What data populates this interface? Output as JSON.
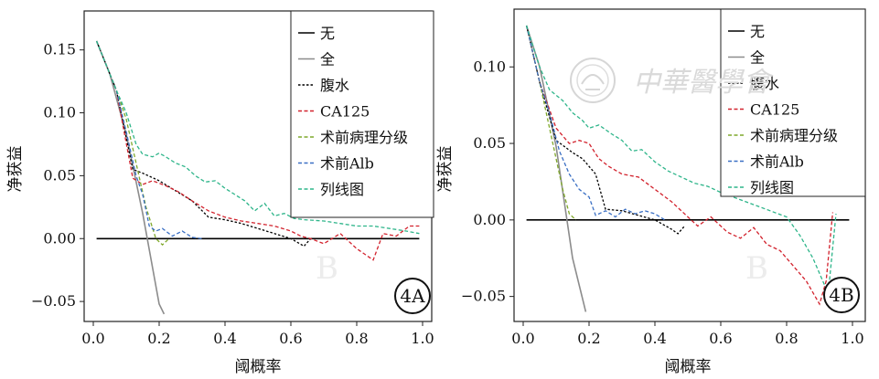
{
  "chart_data": [
    {
      "type": "line",
      "panel_label": "4A",
      "xlabel": "阈概率",
      "ylabel": "净获益",
      "xlim": [
        0.0,
        1.0
      ],
      "ylim": [
        -0.055,
        0.165
      ],
      "xticks": [
        0.0,
        0.2,
        0.4,
        0.6,
        0.8,
        1.0
      ],
      "xtick_labels": [
        "0.0",
        "0.2",
        "0.4",
        "0.6",
        "0.8",
        "1.0"
      ],
      "yticks": [
        0.15,
        0.1,
        0.05,
        0.0,
        -0.05
      ],
      "ytick_labels": [
        "0.15",
        "0.10",
        "0.05",
        "0.00",
        "−0.05"
      ],
      "legend_position": "top-right",
      "series": [
        {
          "name": "无",
          "color": "#000000",
          "dash": "solid",
          "x": [
            0.01,
            0.99
          ],
          "y": [
            0.0,
            0.0
          ]
        },
        {
          "name": "全",
          "color": "#8c8c8c",
          "dash": "solid",
          "x": [
            0.01,
            0.05,
            0.1,
            0.15,
            0.2,
            0.215
          ],
          "y": [
            0.157,
            0.131,
            0.083,
            0.02,
            -0.052,
            -0.06
          ]
        },
        {
          "name": "腹水",
          "color": "#000000",
          "dash": "dot",
          "x": [
            0.01,
            0.07,
            0.12,
            0.15,
            0.2,
            0.25,
            0.3,
            0.35,
            0.4,
            0.45,
            0.5,
            0.55,
            0.6,
            0.64,
            0.66
          ],
          "y": [
            0.157,
            0.118,
            0.055,
            0.052,
            0.046,
            0.038,
            0.03,
            0.017,
            0.015,
            0.012,
            0.008,
            0.004,
            0.0,
            -0.006,
            0.0
          ]
        },
        {
          "name": "CA125",
          "color": "#d2222d",
          "dash": "dash",
          "x": [
            0.01,
            0.07,
            0.12,
            0.15,
            0.18,
            0.22,
            0.26,
            0.3,
            0.35,
            0.4,
            0.45,
            0.5,
            0.55,
            0.6,
            0.63,
            0.66,
            0.7,
            0.75,
            0.8,
            0.85,
            0.88,
            0.92,
            0.96,
            0.99
          ],
          "y": [
            0.157,
            0.118,
            0.048,
            0.043,
            0.046,
            0.042,
            0.037,
            0.03,
            0.022,
            0.017,
            0.014,
            0.012,
            0.01,
            0.006,
            0.002,
            0.0,
            -0.004,
            0.004,
            -0.008,
            -0.017,
            0.004,
            0.002,
            0.01,
            0.01
          ]
        },
        {
          "name": "术前病理分级",
          "color": "#7fa82b",
          "dash": "dash",
          "x": [
            0.01,
            0.07,
            0.1,
            0.13,
            0.16,
            0.19,
            0.21,
            0.23
          ],
          "y": [
            0.157,
            0.118,
            0.095,
            0.06,
            0.025,
            0.0,
            -0.005,
            0.0
          ]
        },
        {
          "name": "术前Alb",
          "color": "#3a6fc4",
          "dash": "dash",
          "x": [
            0.01,
            0.07,
            0.1,
            0.13,
            0.15,
            0.17,
            0.19,
            0.21,
            0.24,
            0.27,
            0.3,
            0.33
          ],
          "y": [
            0.157,
            0.118,
            0.085,
            0.05,
            0.035,
            0.01,
            0.006,
            0.008,
            0.002,
            0.006,
            0.001,
            0.0
          ]
        },
        {
          "name": "列线图",
          "color": "#2eb58a",
          "dash": "dash",
          "x": [
            0.01,
            0.07,
            0.1,
            0.13,
            0.15,
            0.18,
            0.2,
            0.22,
            0.25,
            0.28,
            0.31,
            0.34,
            0.37,
            0.4,
            0.43,
            0.46,
            0.49,
            0.52,
            0.55,
            0.58,
            0.61,
            0.64,
            0.7,
            0.75,
            0.8,
            0.85,
            0.9,
            0.95,
            0.99
          ],
          "y": [
            0.157,
            0.118,
            0.1,
            0.075,
            0.067,
            0.065,
            0.068,
            0.065,
            0.06,
            0.057,
            0.05,
            0.045,
            0.046,
            0.04,
            0.035,
            0.03,
            0.022,
            0.028,
            0.018,
            0.02,
            0.016,
            0.015,
            0.014,
            0.012,
            0.01,
            0.01,
            0.008,
            0.006,
            0.004
          ]
        }
      ]
    },
    {
      "type": "line",
      "panel_label": "4B",
      "xlabel": "阈概率",
      "ylabel": "净获益",
      "xlim": [
        0.0,
        1.0
      ],
      "ylim": [
        -0.055,
        0.13
      ],
      "xticks": [
        0.0,
        0.2,
        0.4,
        0.6,
        0.8,
        1.0
      ],
      "xtick_labels": [
        "0.0",
        "0.2",
        "0.4",
        "0.6",
        "0.8",
        "1.0"
      ],
      "yticks": [
        0.1,
        0.05,
        0.0,
        -0.05
      ],
      "ytick_labels": [
        "0.10",
        "0.05",
        "0.00",
        "−0.05"
      ],
      "legend_position": "top-right",
      "series": [
        {
          "name": "无",
          "color": "#000000",
          "dash": "solid",
          "x": [
            0.01,
            0.99
          ],
          "y": [
            0.0,
            0.0
          ]
        },
        {
          "name": "全",
          "color": "#8c8c8c",
          "dash": "solid",
          "x": [
            0.01,
            0.05,
            0.1,
            0.15,
            0.19
          ],
          "y": [
            0.127,
            0.1,
            0.048,
            -0.025,
            -0.06
          ]
        },
        {
          "name": "腹水",
          "color": "#000000",
          "dash": "dot",
          "x": [
            0.01,
            0.05,
            0.1,
            0.15,
            0.18,
            0.22,
            0.25,
            0.3,
            0.35,
            0.4,
            0.45,
            0.47,
            0.49
          ],
          "y": [
            0.127,
            0.09,
            0.052,
            0.044,
            0.04,
            0.03,
            0.007,
            0.006,
            0.003,
            0.0,
            -0.006,
            -0.009,
            -0.004
          ]
        },
        {
          "name": "CA125",
          "color": "#d2222d",
          "dash": "dash",
          "x": [
            0.01,
            0.05,
            0.1,
            0.14,
            0.17,
            0.2,
            0.23,
            0.26,
            0.3,
            0.35,
            0.4,
            0.45,
            0.5,
            0.53,
            0.57,
            0.62,
            0.66,
            0.7,
            0.74,
            0.78,
            0.82,
            0.86,
            0.9,
            0.92,
            0.94
          ],
          "y": [
            0.127,
            0.09,
            0.06,
            0.05,
            0.052,
            0.05,
            0.04,
            0.035,
            0.03,
            0.028,
            0.02,
            0.012,
            0.002,
            -0.004,
            0.002,
            -0.008,
            -0.012,
            -0.005,
            -0.016,
            -0.02,
            -0.03,
            -0.04,
            -0.055,
            -0.04,
            0.005
          ]
        },
        {
          "name": "术前病理分级",
          "color": "#7fa82b",
          "dash": "dash",
          "x": [
            0.01,
            0.05,
            0.08,
            0.1,
            0.12,
            0.14,
            0.16
          ],
          "y": [
            0.127,
            0.09,
            0.06,
            0.04,
            0.02,
            0.004,
            0.0
          ]
        },
        {
          "name": "术前Alb",
          "color": "#3a6fc4",
          "dash": "dash",
          "x": [
            0.01,
            0.05,
            0.08,
            0.11,
            0.14,
            0.17,
            0.2,
            0.22,
            0.25,
            0.28,
            0.31,
            0.34,
            0.37,
            0.4,
            0.43
          ],
          "y": [
            0.127,
            0.09,
            0.07,
            0.045,
            0.03,
            0.02,
            0.015,
            0.003,
            0.006,
            0.002,
            0.007,
            0.004,
            0.006,
            0.004,
            0.0
          ]
        },
        {
          "name": "列线图",
          "color": "#2eb58a",
          "dash": "dash",
          "x": [
            0.01,
            0.05,
            0.08,
            0.12,
            0.15,
            0.18,
            0.2,
            0.23,
            0.27,
            0.3,
            0.33,
            0.36,
            0.4,
            0.44,
            0.48,
            0.52,
            0.56,
            0.6,
            0.65,
            0.7,
            0.75,
            0.8,
            0.84,
            0.88,
            0.92,
            0.93,
            0.95
          ],
          "y": [
            0.127,
            0.1,
            0.085,
            0.078,
            0.07,
            0.065,
            0.06,
            0.062,
            0.056,
            0.052,
            0.045,
            0.046,
            0.038,
            0.032,
            0.028,
            0.024,
            0.022,
            0.018,
            0.014,
            0.01,
            0.006,
            0.002,
            -0.01,
            -0.025,
            -0.045,
            -0.04,
            0.004
          ]
        }
      ]
    }
  ],
  "watermark": {
    "text": "中華醫學會",
    "letters": [
      "B",
      "B"
    ]
  }
}
